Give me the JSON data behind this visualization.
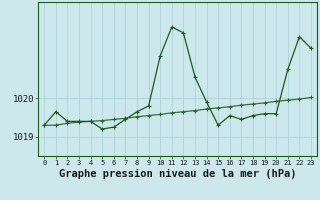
{
  "title": "Graphe pression niveau de la mer (hPa)",
  "background_color": "#cde8ec",
  "grid_color": "#b0d0d8",
  "line_color": "#1a5c1a",
  "hours": [
    0,
    1,
    2,
    3,
    4,
    5,
    6,
    7,
    8,
    9,
    10,
    11,
    12,
    13,
    14,
    15,
    16,
    17,
    18,
    19,
    20,
    21,
    22,
    23
  ],
  "series1": [
    1019.3,
    1019.65,
    1019.4,
    1019.4,
    1019.4,
    1019.2,
    1019.25,
    1019.45,
    1019.65,
    1019.8,
    1021.1,
    1021.85,
    1021.7,
    1020.55,
    1019.9,
    1019.3,
    1019.55,
    1019.45,
    1019.55,
    1019.6,
    1019.6,
    1020.75,
    1021.6,
    1021.3
  ],
  "series2": [
    1019.3,
    1019.3,
    1019.35,
    1019.38,
    1019.4,
    1019.42,
    1019.45,
    1019.48,
    1019.52,
    1019.55,
    1019.58,
    1019.62,
    1019.65,
    1019.68,
    1019.72,
    1019.75,
    1019.78,
    1019.82,
    1019.85,
    1019.88,
    1019.92,
    1019.95,
    1019.98,
    1020.02
  ],
  "yticks": [
    1019,
    1020
  ],
  "ylim": [
    1018.5,
    1022.5
  ],
  "xlim": [
    -0.5,
    23.5
  ],
  "title_fontsize": 7.5
}
